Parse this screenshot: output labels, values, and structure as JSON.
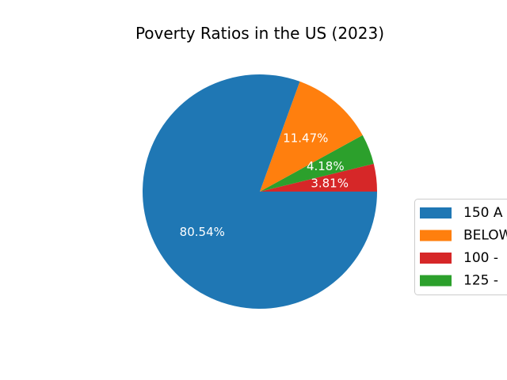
{
  "chart_data": {
    "type": "pie",
    "title": "Poverty Ratios in the US (2023)",
    "start_angle_deg": 0,
    "direction": "counterclockwise",
    "slices": [
      {
        "label": "3.81%",
        "legend": "100 - ",
        "value": 3.81,
        "color": "#d62728"
      },
      {
        "label": "4.18%",
        "legend": "125 - ",
        "value": 4.18,
        "color": "#2ca02c"
      },
      {
        "label": "11.47%",
        "legend": "BELOW",
        "value": 11.47,
        "color": "#ff7f0e"
      },
      {
        "label": "80.54%",
        "legend": "150 A",
        "value": 80.54,
        "color": "#1f77b4"
      }
    ],
    "legend_placement": "right (cut off at image edge)",
    "label_color": "#ffffff"
  }
}
